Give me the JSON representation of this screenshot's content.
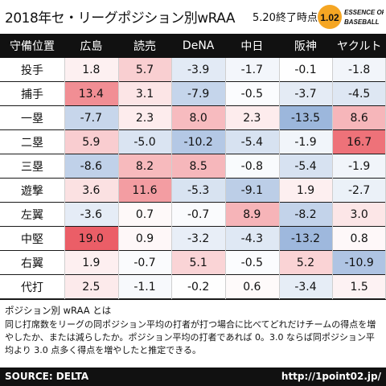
{
  "header": {
    "title": "2018年セ・リーグポジション別wRAA",
    "subtitle": "5.20終了時点",
    "logo": {
      "big": "1.02",
      "line1": "ESSENCE OF",
      "line2": "BASEBALL",
      "accent": "#f5a623"
    }
  },
  "chart_data": {
    "type": "table",
    "corner_label": "守備位置",
    "columns": [
      "広島",
      "読売",
      "DeNA",
      "中日",
      "阪神",
      "ヤクルト"
    ],
    "rows": [
      {
        "label": "投手",
        "values": [
          "1.8",
          "5.7",
          "-3.9",
          "-1.7",
          "-0.1",
          "-1.8"
        ]
      },
      {
        "label": "捕手",
        "values": [
          "13.4",
          "3.1",
          "-7.9",
          "-0.5",
          "-3.7",
          "-4.5"
        ]
      },
      {
        "label": "一塁",
        "values": [
          "-7.7",
          "2.3",
          "8.0",
          "2.3",
          "-13.5",
          "8.6"
        ]
      },
      {
        "label": "二塁",
        "values": [
          "5.9",
          "-5.0",
          "-10.2",
          "-5.4",
          "-1.9",
          "16.7"
        ]
      },
      {
        "label": "三塁",
        "values": [
          "-8.6",
          "8.2",
          "8.5",
          "-0.8",
          "-5.4",
          "-1.9"
        ]
      },
      {
        "label": "遊撃",
        "values": [
          "3.6",
          "11.6",
          "-5.3",
          "-9.1",
          "1.9",
          "-2.7"
        ]
      },
      {
        "label": "左翼",
        "values": [
          "-3.6",
          "0.7",
          "-0.7",
          "8.9",
          "-8.2",
          "3.0"
        ]
      },
      {
        "label": "中堅",
        "values": [
          "19.0",
          "0.9",
          "-3.2",
          "-4.3",
          "-13.2",
          "0.8"
        ]
      },
      {
        "label": "右翼",
        "values": [
          "1.9",
          "-0.7",
          "5.1",
          "-0.5",
          "5.2",
          "-10.9"
        ]
      },
      {
        "label": "代打",
        "values": [
          "2.5",
          "-1.1",
          "-0.2",
          "0.6",
          "-3.4",
          "1.5"
        ]
      }
    ],
    "color_scale": {
      "negative": "#5b87c5",
      "neutral": "#ffffff",
      "positive": "#e8424c"
    }
  },
  "note": {
    "heading": "ポジション別 wRAA とは",
    "text": "同じ打席数をリーグの同ポジション平均の打者が打つ場合に比べてどれだけチームの得点を増やしたか、または減らしたか。ポジション平均の打者であれば 0。3.0 ならば同ポジション平均より 3.0 点多く得点を増やしたと推定できる。"
  },
  "footer": {
    "source": "SOURCE: DELTA",
    "url": "http://1point02.jp/"
  }
}
